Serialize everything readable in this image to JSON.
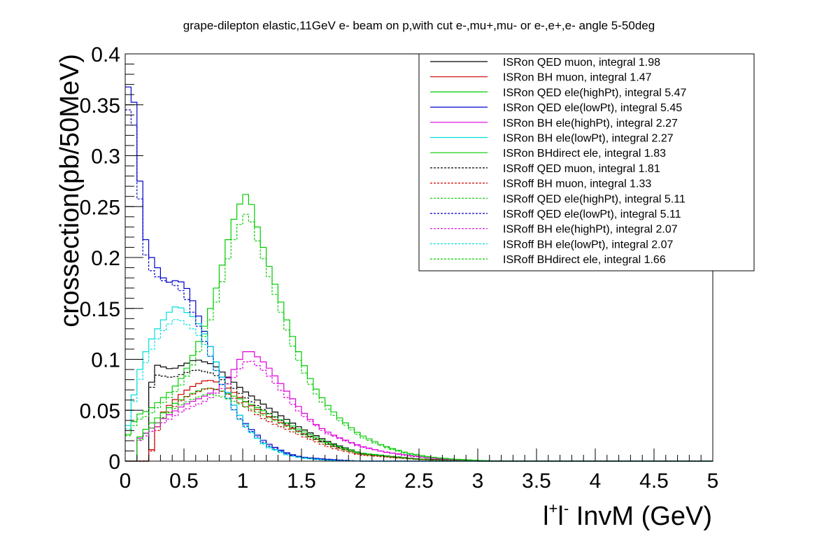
{
  "chart_data": {
    "type": "line",
    "title": "grape-dilepton elastic,11GeV e- beam on p,with cut e-,mu+,mu- or e-,e+,e- angle 5-50deg",
    "xlabel": "l+l- InvM (GeV)",
    "ylabel": "crossection(pb/50MeV)",
    "xlim": [
      0,
      5
    ],
    "ylim": [
      0,
      0.4
    ],
    "xticks": [
      "0",
      "0.5",
      "1",
      "1.5",
      "2",
      "2.5",
      "3",
      "3.5",
      "4",
      "4.5",
      "5"
    ],
    "yticks": [
      "0",
      "0.05",
      "0.1",
      "0.15",
      "0.2",
      "0.25",
      "0.3",
      "0.35",
      "0.4"
    ],
    "legend_position": "top-right",
    "grid": false,
    "series": [
      {
        "name": "ISRon QED muon, integral 1.98",
        "color": "#000000",
        "dashed": false,
        "points": [
          [
            0.2,
            0.06
          ],
          [
            0.25,
            0.095
          ],
          [
            0.4,
            0.09
          ],
          [
            0.6,
            0.1
          ],
          [
            0.75,
            0.095
          ],
          [
            0.9,
            0.08
          ],
          [
            1.0,
            0.07
          ],
          [
            1.25,
            0.05
          ],
          [
            1.5,
            0.032
          ],
          [
            1.75,
            0.018
          ],
          [
            2.0,
            0.008
          ],
          [
            2.25,
            0.004
          ],
          [
            2.5,
            0.002
          ],
          [
            3.0,
            0.0005
          ],
          [
            3.5,
            0
          ]
        ]
      },
      {
        "name": "ISRon BH muon, integral 1.47",
        "color": "#cc0000",
        "dashed": false,
        "points": [
          [
            0.2,
            0
          ],
          [
            0.3,
            0.045
          ],
          [
            0.4,
            0.058
          ],
          [
            0.5,
            0.068
          ],
          [
            0.6,
            0.075
          ],
          [
            0.7,
            0.08
          ],
          [
            0.8,
            0.077
          ],
          [
            0.9,
            0.07
          ],
          [
            1.0,
            0.06
          ],
          [
            1.2,
            0.045
          ],
          [
            1.5,
            0.028
          ],
          [
            1.75,
            0.015
          ],
          [
            2.0,
            0.007
          ],
          [
            2.5,
            0.002
          ],
          [
            3.0,
            0
          ]
        ]
      },
      {
        "name": "ISRon QED ele(highPt), integral 5.47",
        "color": "#00cc00",
        "dashed": false,
        "points": [
          [
            0,
            0.02
          ],
          [
            0.1,
            0.045
          ],
          [
            0.2,
            0.05
          ],
          [
            0.3,
            0.06
          ],
          [
            0.4,
            0.07
          ],
          [
            0.5,
            0.085
          ],
          [
            0.6,
            0.11
          ],
          [
            0.7,
            0.14
          ],
          [
            0.8,
            0.18
          ],
          [
            0.9,
            0.23
          ],
          [
            1.0,
            0.26
          ],
          [
            1.05,
            0.264
          ],
          [
            1.1,
            0.24
          ],
          [
            1.2,
            0.2
          ],
          [
            1.3,
            0.165
          ],
          [
            1.4,
            0.13
          ],
          [
            1.5,
            0.1
          ],
          [
            1.6,
            0.075
          ],
          [
            1.7,
            0.058
          ],
          [
            1.8,
            0.045
          ],
          [
            1.9,
            0.035
          ],
          [
            2.0,
            0.026
          ],
          [
            2.2,
            0.015
          ],
          [
            2.4,
            0.008
          ],
          [
            2.6,
            0.004
          ],
          [
            2.8,
            0.002
          ],
          [
            3.0,
            0.0008
          ],
          [
            3.2,
            0
          ]
        ]
      },
      {
        "name": "ISRon QED ele(lowPt), integral 5.45",
        "color": "#0000cc",
        "dashed": false,
        "points": [
          [
            0,
            0.35
          ],
          [
            0.05,
            0.385
          ],
          [
            0.1,
            0.32
          ],
          [
            0.15,
            0.23
          ],
          [
            0.2,
            0.205
          ],
          [
            0.3,
            0.185
          ],
          [
            0.35,
            0.175
          ],
          [
            0.45,
            0.178
          ],
          [
            0.5,
            0.174
          ],
          [
            0.55,
            0.165
          ],
          [
            0.6,
            0.15
          ],
          [
            0.7,
            0.12
          ],
          [
            0.8,
            0.09
          ],
          [
            0.9,
            0.06
          ],
          [
            1.0,
            0.04
          ],
          [
            1.1,
            0.028
          ],
          [
            1.2,
            0.018
          ],
          [
            1.3,
            0.012
          ],
          [
            1.4,
            0.007
          ],
          [
            1.5,
            0.004
          ],
          [
            1.7,
            0.002
          ],
          [
            2.0,
            0
          ]
        ]
      },
      {
        "name": "ISRon BH ele(highPt), integral 2.27",
        "color": "#dd00dd",
        "dashed": false,
        "points": [
          [
            0.1,
            0.02
          ],
          [
            0.3,
            0.04
          ],
          [
            0.5,
            0.055
          ],
          [
            0.7,
            0.065
          ],
          [
            0.8,
            0.072
          ],
          [
            0.9,
            0.085
          ],
          [
            1.0,
            0.105
          ],
          [
            1.05,
            0.11
          ],
          [
            1.1,
            0.105
          ],
          [
            1.2,
            0.095
          ],
          [
            1.3,
            0.08
          ],
          [
            1.4,
            0.065
          ],
          [
            1.5,
            0.05
          ],
          [
            1.6,
            0.038
          ],
          [
            1.7,
            0.03
          ],
          [
            1.8,
            0.024
          ],
          [
            2.0,
            0.015
          ],
          [
            2.2,
            0.009
          ],
          [
            2.4,
            0.006
          ],
          [
            2.6,
            0.003
          ],
          [
            2.8,
            0.001
          ],
          [
            3.0,
            0
          ]
        ]
      },
      {
        "name": "ISRon BH ele(lowPt), integral 2.27",
        "color": "#00dddd",
        "dashed": false,
        "points": [
          [
            0,
            0.02
          ],
          [
            0.05,
            0.05
          ],
          [
            0.1,
            0.08
          ],
          [
            0.15,
            0.1
          ],
          [
            0.2,
            0.115
          ],
          [
            0.3,
            0.135
          ],
          [
            0.4,
            0.15
          ],
          [
            0.45,
            0.153
          ],
          [
            0.5,
            0.148
          ],
          [
            0.6,
            0.14
          ],
          [
            0.7,
            0.12
          ],
          [
            0.8,
            0.09
          ],
          [
            0.9,
            0.06
          ],
          [
            1.0,
            0.04
          ],
          [
            1.1,
            0.025
          ],
          [
            1.2,
            0.015
          ],
          [
            1.3,
            0.01
          ],
          [
            1.4,
            0.006
          ],
          [
            1.5,
            0.003
          ],
          [
            1.7,
            0.001
          ],
          [
            2.0,
            0
          ]
        ]
      },
      {
        "name": "ISRon BHdirect ele, integral 1.83",
        "color": "#00cc00",
        "dashed": false,
        "points": [
          [
            0.1,
            0.02
          ],
          [
            0.2,
            0.035
          ],
          [
            0.3,
            0.045
          ],
          [
            0.4,
            0.055
          ],
          [
            0.5,
            0.062
          ],
          [
            0.6,
            0.068
          ],
          [
            0.7,
            0.072
          ],
          [
            0.8,
            0.07
          ],
          [
            0.9,
            0.065
          ],
          [
            1.0,
            0.06
          ],
          [
            1.2,
            0.048
          ],
          [
            1.5,
            0.03
          ],
          [
            1.75,
            0.017
          ],
          [
            2.0,
            0.008
          ],
          [
            2.5,
            0.002
          ],
          [
            3.0,
            0
          ]
        ]
      },
      {
        "name": "ISRoff QED muon, integral 1.81",
        "color": "#000000",
        "dashed": true,
        "points": [
          [
            0.2,
            0.06
          ],
          [
            0.25,
            0.085
          ],
          [
            0.4,
            0.082
          ],
          [
            0.6,
            0.09
          ],
          [
            0.75,
            0.086
          ],
          [
            0.9,
            0.074
          ],
          [
            1.0,
            0.064
          ],
          [
            1.25,
            0.045
          ],
          [
            1.5,
            0.028
          ],
          [
            1.75,
            0.016
          ],
          [
            2.0,
            0.007
          ],
          [
            2.5,
            0.002
          ],
          [
            3.0,
            0
          ]
        ]
      },
      {
        "name": "ISRoff BH muon, integral 1.33",
        "color": "#cc0000",
        "dashed": true,
        "points": [
          [
            0.2,
            0
          ],
          [
            0.3,
            0.04
          ],
          [
            0.5,
            0.062
          ],
          [
            0.7,
            0.072
          ],
          [
            0.8,
            0.07
          ],
          [
            0.9,
            0.064
          ],
          [
            1.0,
            0.055
          ],
          [
            1.2,
            0.04
          ],
          [
            1.5,
            0.025
          ],
          [
            1.75,
            0.013
          ],
          [
            2.0,
            0.006
          ],
          [
            2.5,
            0.0015
          ],
          [
            3.0,
            0
          ]
        ]
      },
      {
        "name": "ISRoff QED ele(highPt), integral 5.11",
        "color": "#00cc00",
        "dashed": true,
        "points": [
          [
            0,
            0.02
          ],
          [
            0.1,
            0.04
          ],
          [
            0.2,
            0.045
          ],
          [
            0.3,
            0.055
          ],
          [
            0.4,
            0.065
          ],
          [
            0.5,
            0.078
          ],
          [
            0.6,
            0.1
          ],
          [
            0.7,
            0.13
          ],
          [
            0.8,
            0.165
          ],
          [
            0.9,
            0.21
          ],
          [
            1.0,
            0.24
          ],
          [
            1.05,
            0.245
          ],
          [
            1.1,
            0.225
          ],
          [
            1.2,
            0.19
          ],
          [
            1.3,
            0.155
          ],
          [
            1.4,
            0.12
          ],
          [
            1.5,
            0.092
          ],
          [
            1.6,
            0.07
          ],
          [
            1.7,
            0.054
          ],
          [
            1.8,
            0.042
          ],
          [
            2.0,
            0.024
          ],
          [
            2.2,
            0.014
          ],
          [
            2.4,
            0.007
          ],
          [
            2.6,
            0.003
          ],
          [
            3.0,
            0.0006
          ],
          [
            3.2,
            0
          ]
        ]
      },
      {
        "name": "ISRoff QED ele(lowPt), integral 5.11",
        "color": "#0000cc",
        "dashed": true,
        "points": [
          [
            0,
            0.33
          ],
          [
            0.05,
            0.36
          ],
          [
            0.1,
            0.3
          ],
          [
            0.15,
            0.215
          ],
          [
            0.2,
            0.19
          ],
          [
            0.3,
            0.178
          ],
          [
            0.4,
            0.175
          ],
          [
            0.5,
            0.165
          ],
          [
            0.6,
            0.14
          ],
          [
            0.7,
            0.11
          ],
          [
            0.8,
            0.082
          ],
          [
            0.9,
            0.055
          ],
          [
            1.0,
            0.037
          ],
          [
            1.2,
            0.016
          ],
          [
            1.4,
            0.006
          ],
          [
            1.6,
            0.002
          ],
          [
            2.0,
            0
          ]
        ]
      },
      {
        "name": "ISRoff BH ele(highPt), integral 2.07",
        "color": "#dd00dd",
        "dashed": true,
        "points": [
          [
            0.1,
            0.018
          ],
          [
            0.3,
            0.036
          ],
          [
            0.5,
            0.05
          ],
          [
            0.7,
            0.06
          ],
          [
            0.9,
            0.078
          ],
          [
            1.0,
            0.095
          ],
          [
            1.05,
            0.1
          ],
          [
            1.1,
            0.096
          ],
          [
            1.2,
            0.087
          ],
          [
            1.3,
            0.073
          ],
          [
            1.4,
            0.059
          ],
          [
            1.5,
            0.046
          ],
          [
            1.7,
            0.028
          ],
          [
            2.0,
            0.014
          ],
          [
            2.4,
            0.005
          ],
          [
            2.8,
            0.001
          ],
          [
            3.0,
            0
          ]
        ]
      },
      {
        "name": "ISRoff BH ele(lowPt), integral 2.07",
        "color": "#00dddd",
        "dashed": true,
        "points": [
          [
            0,
            0.018
          ],
          [
            0.05,
            0.045
          ],
          [
            0.1,
            0.072
          ],
          [
            0.2,
            0.105
          ],
          [
            0.3,
            0.125
          ],
          [
            0.4,
            0.138
          ],
          [
            0.45,
            0.14
          ],
          [
            0.5,
            0.136
          ],
          [
            0.6,
            0.128
          ],
          [
            0.7,
            0.11
          ],
          [
            0.8,
            0.082
          ],
          [
            0.9,
            0.055
          ],
          [
            1.0,
            0.036
          ],
          [
            1.2,
            0.014
          ],
          [
            1.4,
            0.005
          ],
          [
            1.7,
            0.001
          ],
          [
            2.0,
            0
          ]
        ]
      },
      {
        "name": "ISRoff BHdirect ele, integral 1.66",
        "color": "#00cc00",
        "dashed": true,
        "points": [
          [
            0.1,
            0.018
          ],
          [
            0.2,
            0.03
          ],
          [
            0.3,
            0.04
          ],
          [
            0.4,
            0.05
          ],
          [
            0.5,
            0.057
          ],
          [
            0.6,
            0.062
          ],
          [
            0.7,
            0.066
          ],
          [
            0.8,
            0.064
          ],
          [
            0.9,
            0.06
          ],
          [
            1.0,
            0.055
          ],
          [
            1.2,
            0.044
          ],
          [
            1.5,
            0.027
          ],
          [
            1.75,
            0.015
          ],
          [
            2.0,
            0.007
          ],
          [
            2.5,
            0.0015
          ],
          [
            3.0,
            0
          ]
        ]
      }
    ]
  }
}
